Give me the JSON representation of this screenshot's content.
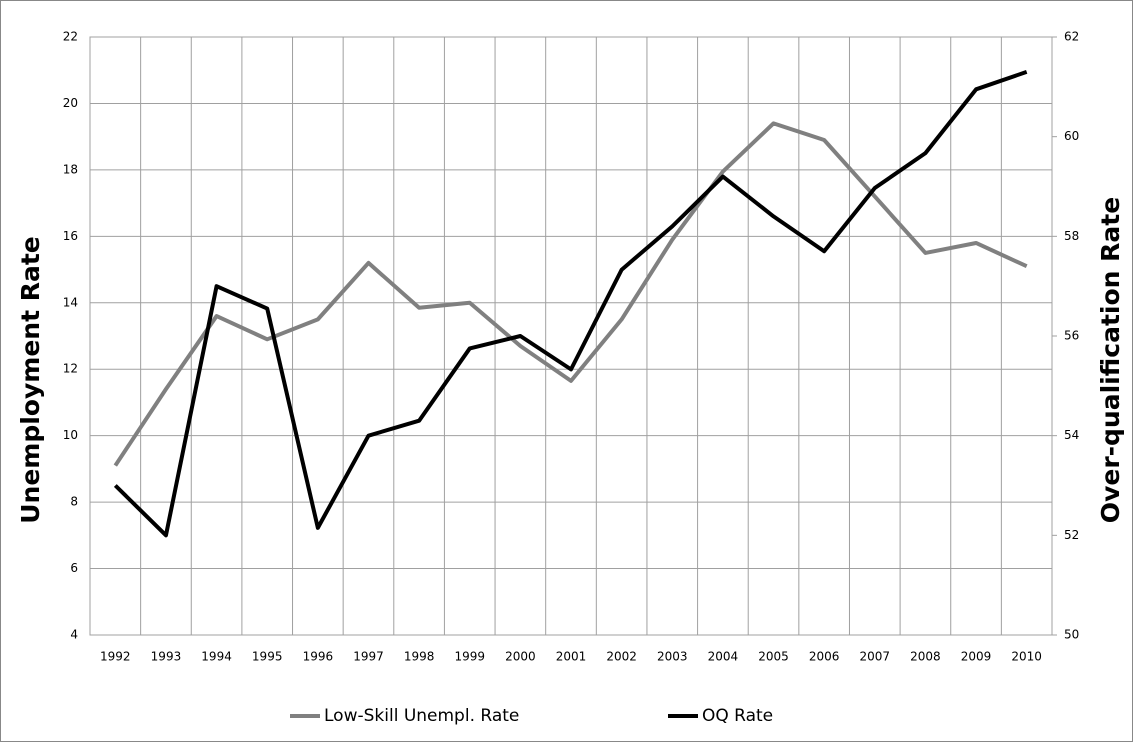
{
  "chart_data": {
    "type": "line",
    "categories": [
      "1992",
      "1993",
      "1994",
      "1995",
      "1996",
      "1997",
      "1998",
      "1999",
      "2000",
      "2001",
      "2002",
      "2003",
      "2004",
      "2005",
      "2006",
      "2007",
      "2008",
      "2009",
      "2010"
    ],
    "ylabel": "Unemployment Rate",
    "y2label": "Over-qualification Rate",
    "ylim": [
      4,
      22
    ],
    "yticks": [
      4,
      6,
      8,
      10,
      12,
      14,
      16,
      18,
      20,
      22
    ],
    "y2lim": [
      50,
      62
    ],
    "y2ticks": [
      50,
      52,
      54,
      56,
      58,
      60,
      62
    ],
    "grid": true,
    "legend": "bottom",
    "series": [
      {
        "name": "Low-Skill Unempl. Rate",
        "color": "#808080",
        "values": [
          9.1,
          11.4,
          13.6,
          12.9,
          13.5,
          15.2,
          13.85,
          14.0,
          12.7,
          11.65,
          13.5,
          15.9,
          17.95,
          19.4,
          18.9,
          17.2,
          15.5,
          15.8,
          15.1
        ]
      },
      {
        "name": "OQ Rate",
        "color": "#000000",
        "axis": "y2",
        "values": [
          53.0,
          52.0,
          57.0,
          56.55,
          52.15,
          54.0,
          54.3,
          55.75,
          56.0,
          55.33,
          57.33,
          58.2,
          59.2,
          58.4,
          57.7,
          58.97,
          59.67,
          60.95,
          61.3
        ]
      }
    ]
  }
}
